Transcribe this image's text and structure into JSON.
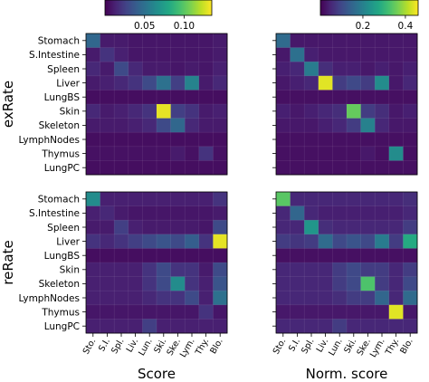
{
  "chart_data": {
    "type": "heatmap",
    "categories_y": [
      "Stomach",
      "S.Intestine",
      "Spleen",
      "Liver",
      "LungBS",
      "Skin",
      "Skeleton",
      "LymphNodes",
      "Thymus",
      "LungPC"
    ],
    "categories_x": [
      "Sto.",
      "S.I.",
      "Spl.",
      "Liv.",
      "Lun.",
      "Ski.",
      "Ske.",
      "Lym.",
      "Thy.",
      "Blo."
    ],
    "row_labels": [
      "exRate",
      "reRate"
    ],
    "col_labels": [
      "Score",
      "Norm. score"
    ],
    "colormap": "viridis",
    "colorbars": [
      {
        "label": "Score",
        "range": [
          0,
          0.135
        ],
        "ticks": [
          0.05,
          0.1
        ],
        "tick_labels": [
          "0.05",
          "0.10"
        ]
      },
      {
        "label": "Norm. score",
        "range": [
          0,
          0.46
        ],
        "ticks": [
          0.2,
          0.4
        ],
        "tick_labels": [
          "0.2",
          "0.4"
        ]
      }
    ],
    "panels": [
      {
        "row": "exRate",
        "col": "Score",
        "values": [
          [
            0.045,
            0.01,
            0.01,
            0.008,
            0.008,
            0.008,
            0.008,
            0.008,
            0.008,
            0.01
          ],
          [
            0.01,
            0.02,
            0.012,
            0.008,
            0.008,
            0.008,
            0.008,
            0.008,
            0.008,
            0.01
          ],
          [
            0.015,
            0.01,
            0.03,
            0.015,
            0.01,
            0.01,
            0.008,
            0.01,
            0.008,
            0.012
          ],
          [
            0.01,
            0.012,
            0.015,
            0.02,
            0.03,
            0.05,
            0.025,
            0.06,
            0.01,
            0.015
          ],
          [
            0.005,
            0.005,
            0.005,
            0.005,
            0.005,
            0.005,
            0.005,
            0.005,
            0.005,
            0.005
          ],
          [
            0.015,
            0.01,
            0.012,
            0.015,
            0.02,
            0.13,
            0.025,
            0.02,
            0.01,
            0.012
          ],
          [
            0.01,
            0.01,
            0.01,
            0.012,
            0.015,
            0.03,
            0.045,
            0.015,
            0.01,
            0.01
          ],
          [
            0.005,
            0.005,
            0.005,
            0.005,
            0.005,
            0.005,
            0.005,
            0.005,
            0.005,
            0.005
          ],
          [
            0.006,
            0.006,
            0.006,
            0.006,
            0.006,
            0.006,
            0.01,
            0.006,
            0.02,
            0.006
          ],
          [
            0.005,
            0.005,
            0.005,
            0.005,
            0.005,
            0.005,
            0.005,
            0.005,
            0.005,
            0.005
          ]
        ]
      },
      {
        "row": "exRate",
        "col": "Norm. score",
        "values": [
          [
            0.16,
            0.03,
            0.03,
            0.03,
            0.03,
            0.03,
            0.03,
            0.03,
            0.03,
            0.03
          ],
          [
            0.03,
            0.17,
            0.04,
            0.03,
            0.03,
            0.03,
            0.03,
            0.03,
            0.03,
            0.03
          ],
          [
            0.04,
            0.05,
            0.19,
            0.06,
            0.04,
            0.04,
            0.03,
            0.04,
            0.03,
            0.04
          ],
          [
            0.03,
            0.04,
            0.05,
            0.44,
            0.08,
            0.1,
            0.08,
            0.22,
            0.03,
            0.05
          ],
          [
            0.02,
            0.02,
            0.02,
            0.02,
            0.02,
            0.02,
            0.02,
            0.02,
            0.02,
            0.02
          ],
          [
            0.04,
            0.03,
            0.04,
            0.05,
            0.06,
            0.35,
            0.08,
            0.06,
            0.03,
            0.04
          ],
          [
            0.03,
            0.03,
            0.03,
            0.04,
            0.05,
            0.08,
            0.2,
            0.05,
            0.03,
            0.03
          ],
          [
            0.02,
            0.02,
            0.02,
            0.02,
            0.02,
            0.02,
            0.02,
            0.02,
            0.02,
            0.02
          ],
          [
            0.02,
            0.02,
            0.02,
            0.02,
            0.02,
            0.02,
            0.03,
            0.02,
            0.22,
            0.02
          ],
          [
            0.02,
            0.02,
            0.02,
            0.02,
            0.02,
            0.02,
            0.02,
            0.02,
            0.02,
            0.02
          ]
        ]
      },
      {
        "row": "reRate",
        "col": "Score",
        "values": [
          [
            0.065,
            0.012,
            0.012,
            0.012,
            0.012,
            0.012,
            0.012,
            0.012,
            0.012,
            0.02
          ],
          [
            0.012,
            0.015,
            0.01,
            0.008,
            0.008,
            0.008,
            0.008,
            0.008,
            0.008,
            0.01
          ],
          [
            0.01,
            0.01,
            0.025,
            0.012,
            0.01,
            0.01,
            0.01,
            0.01,
            0.008,
            0.03
          ],
          [
            0.02,
            0.015,
            0.02,
            0.025,
            0.03,
            0.035,
            0.03,
            0.04,
            0.02,
            0.13
          ],
          [
            0.005,
            0.005,
            0.005,
            0.005,
            0.005,
            0.005,
            0.005,
            0.005,
            0.005,
            0.005
          ],
          [
            0.012,
            0.012,
            0.012,
            0.012,
            0.02,
            0.03,
            0.02,
            0.02,
            0.01,
            0.03
          ],
          [
            0.012,
            0.012,
            0.012,
            0.012,
            0.02,
            0.03,
            0.065,
            0.02,
            0.012,
            0.035
          ],
          [
            0.012,
            0.012,
            0.012,
            0.012,
            0.015,
            0.02,
            0.02,
            0.03,
            0.012,
            0.05
          ],
          [
            0.008,
            0.008,
            0.008,
            0.008,
            0.008,
            0.008,
            0.008,
            0.008,
            0.02,
            0.008
          ],
          [
            0.012,
            0.012,
            0.012,
            0.012,
            0.025,
            0.012,
            0.012,
            0.012,
            0.012,
            0.012
          ]
        ]
      },
      {
        "row": "reRate",
        "col": "Norm. score",
        "values": [
          [
            0.34,
            0.05,
            0.05,
            0.05,
            0.05,
            0.05,
            0.05,
            0.05,
            0.05,
            0.06
          ],
          [
            0.05,
            0.15,
            0.05,
            0.04,
            0.04,
            0.04,
            0.04,
            0.04,
            0.04,
            0.05
          ],
          [
            0.05,
            0.05,
            0.24,
            0.06,
            0.05,
            0.05,
            0.05,
            0.05,
            0.05,
            0.08
          ],
          [
            0.08,
            0.07,
            0.08,
            0.16,
            0.1,
            0.12,
            0.1,
            0.19,
            0.08,
            0.28
          ],
          [
            0.02,
            0.02,
            0.02,
            0.02,
            0.02,
            0.02,
            0.02,
            0.02,
            0.02,
            0.02
          ],
          [
            0.05,
            0.05,
            0.05,
            0.05,
            0.08,
            0.1,
            0.08,
            0.08,
            0.05,
            0.08
          ],
          [
            0.05,
            0.05,
            0.05,
            0.05,
            0.08,
            0.1,
            0.33,
            0.08,
            0.05,
            0.1
          ],
          [
            0.05,
            0.05,
            0.05,
            0.05,
            0.06,
            0.08,
            0.08,
            0.15,
            0.05,
            0.16
          ],
          [
            0.03,
            0.03,
            0.03,
            0.03,
            0.03,
            0.03,
            0.03,
            0.03,
            0.44,
            0.03
          ],
          [
            0.05,
            0.05,
            0.05,
            0.05,
            0.08,
            0.05,
            0.05,
            0.05,
            0.05,
            0.05
          ]
        ]
      }
    ]
  }
}
